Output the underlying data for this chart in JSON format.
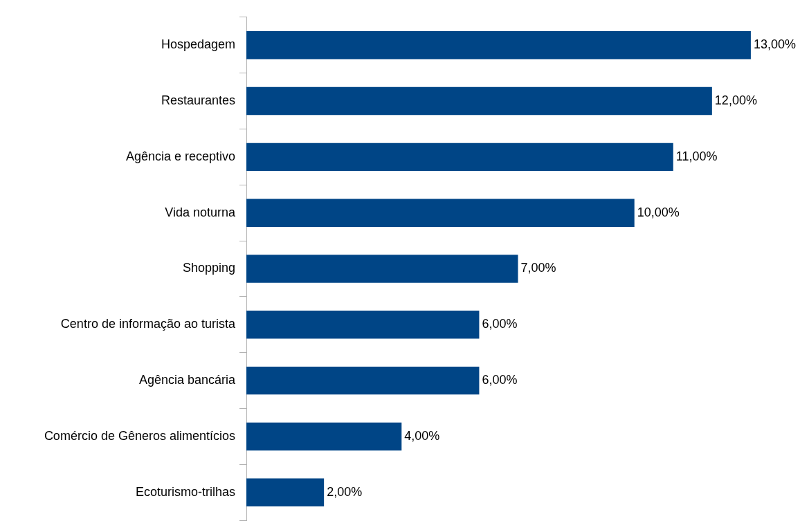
{
  "chart_data": {
    "type": "bar",
    "orientation": "horizontal",
    "categories": [
      "Hospedagem",
      "Restaurantes",
      "Agência e receptivo",
      "Vida noturna",
      "Shopping",
      "Centro de informação ao turista",
      "Agência bancária",
      "Comércio de Gêneros alimentícios",
      "Ecoturismo-trilhas"
    ],
    "values": [
      13,
      12,
      11,
      10,
      7,
      6,
      6,
      4,
      2
    ],
    "value_labels": [
      "13,00%",
      "12,00%",
      "11,00%",
      "10,00%",
      "7,00%",
      "6,00%",
      "6,00%",
      "4,00%",
      "2,00%"
    ],
    "color": "#004586",
    "tick_labels": "y",
    "grid": false,
    "legend": false
  }
}
